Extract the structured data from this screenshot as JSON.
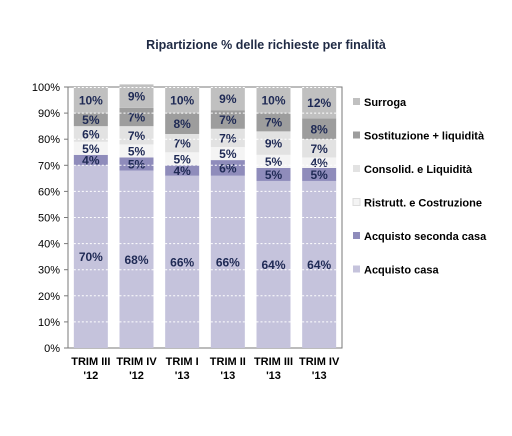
{
  "chart_data": {
    "type": "bar",
    "stacked": true,
    "title": "Ripartizione % delle richieste per finalità",
    "xlabel": "",
    "ylabel": "",
    "ylim": [
      0,
      100
    ],
    "y_ticks": [
      "0%",
      "10%",
      "20%",
      "30%",
      "40%",
      "50%",
      "60%",
      "70%",
      "80%",
      "90%",
      "100%"
    ],
    "grid": false,
    "legend_position": "right",
    "categories": [
      [
        "TRIM III",
        "'12"
      ],
      [
        "TRIM IV",
        "'12"
      ],
      [
        "TRIM I",
        "'13"
      ],
      [
        "TRIM II",
        "'13"
      ],
      [
        "TRIM III",
        "'13"
      ],
      [
        "TRIM IV",
        "'13"
      ]
    ],
    "series": [
      {
        "name": "Acquisto casa",
        "values": [
          70,
          68,
          66,
          66,
          64,
          64
        ],
        "labels": [
          "70%",
          "68%",
          "66%",
          "66%",
          "64%",
          "64%"
        ],
        "color": "#c5c3dc"
      },
      {
        "name": "Acquisto seconda casa",
        "values": [
          4,
          5,
          4,
          6,
          5,
          5
        ],
        "labels": [
          "4%",
          "5%",
          "4%",
          "6%",
          "5%",
          "5%"
        ],
        "color": "#8f8cbb"
      },
      {
        "name": "Ristrutt. e Costruzione",
        "values": [
          5,
          5,
          5,
          5,
          5,
          4
        ],
        "labels": [
          "5%",
          "5%",
          "5%",
          "5%",
          "5%",
          "4%"
        ],
        "color": "#f4f4f4"
      },
      {
        "name": "Consolid. e Liquidità",
        "values": [
          6,
          7,
          7,
          7,
          9,
          7
        ],
        "labels": [
          "6%",
          "7%",
          "7%",
          "7%",
          "9%",
          "7%"
        ],
        "color": "#e2e2e2"
      },
      {
        "name": "Sostituzione + liquidità",
        "values": [
          5,
          7,
          8,
          7,
          7,
          8
        ],
        "labels": [
          "5%",
          "7%",
          "8%",
          "7%",
          "7%",
          "8%"
        ],
        "color": "#9d9d9d"
      },
      {
        "name": "Surroga",
        "values": [
          10,
          9,
          10,
          9,
          10,
          12
        ],
        "labels": [
          "10%",
          "9%",
          "10%",
          "9%",
          "10%",
          "12%"
        ],
        "color": "#c0c0c0"
      }
    ]
  }
}
